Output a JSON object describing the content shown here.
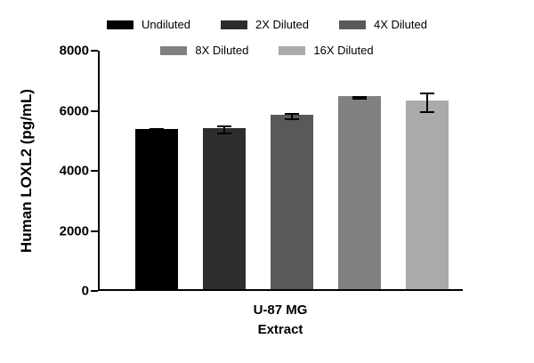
{
  "chart_data": {
    "type": "bar",
    "title": "",
    "categories": [
      "U-87 MG Extract"
    ],
    "series": [
      {
        "name": "Undiluted",
        "color": "#000000",
        "value": 5330,
        "error": 90
      },
      {
        "name": "2X Diluted",
        "color": "#2d2d2d",
        "value": 5360,
        "error": 150
      },
      {
        "name": "4X Diluted",
        "color": "#595959",
        "value": 5810,
        "error": 130
      },
      {
        "name": "8X Diluted",
        "color": "#808080",
        "value": 6420,
        "error": 60
      },
      {
        "name": "16X Diluted",
        "color": "#aaaaaa",
        "value": 6270,
        "error": 330
      }
    ],
    "ylabel": "Human LOXL2 (pg/mL)",
    "xlabel_lines": [
      "U-87 MG",
      "Extract"
    ],
    "ylim": [
      0,
      8000
    ],
    "yticks": [
      0,
      2000,
      4000,
      6000,
      8000
    ],
    "grid": false,
    "legend_position": "top",
    "axis_color": "#000000",
    "background": "#ffffff"
  }
}
